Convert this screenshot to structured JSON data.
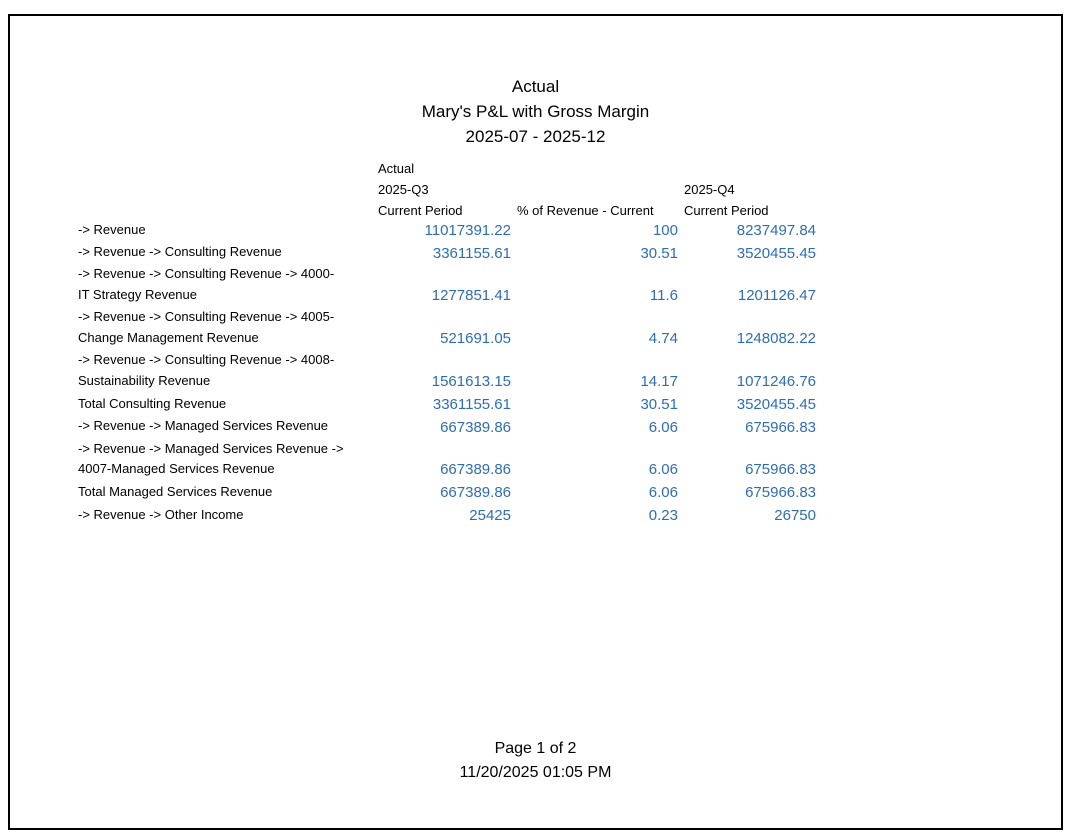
{
  "report": {
    "scenario": "Actual",
    "name": "Mary's P&L with Gross Margin",
    "period_range": "2025-07 - 2025-12"
  },
  "columns": {
    "group_label": "Actual",
    "q3_label": "2025-Q3",
    "q3_current": "Current Period",
    "pct_label": "% of Revenue - Current",
    "q4_label": "2025-Q4",
    "q4_current": "Current Period"
  },
  "rows": [
    {
      "label1": " -> Revenue",
      "label2": "",
      "q3": "11017391.22",
      "pct": "100",
      "q4": "8237497.84"
    },
    {
      "label1": " -> Revenue -> Consulting Revenue",
      "label2": "",
      "q3": "3361155.61",
      "pct": "30.51",
      "q4": "3520455.45"
    },
    {
      "label1": " -> Revenue -> Consulting Revenue -> 4000-",
      "label2": "IT Strategy Revenue",
      "q3": "1277851.41",
      "pct": "11.6",
      "q4": "1201126.47"
    },
    {
      "label1": " -> Revenue -> Consulting Revenue -> 4005-",
      "label2": "Change Management Revenue",
      "q3": "521691.05",
      "pct": "4.74",
      "q4": "1248082.22"
    },
    {
      "label1": " -> Revenue -> Consulting Revenue -> 4008-",
      "label2": "Sustainability Revenue",
      "q3": "1561613.15",
      "pct": "14.17",
      "q4": "1071246.76"
    },
    {
      "label1": "Total Consulting Revenue",
      "label2": "",
      "q3": "3361155.61",
      "pct": "30.51",
      "q4": "3520455.45"
    },
    {
      "label1": " -> Revenue -> Managed Services Revenue",
      "label2": "",
      "q3": "667389.86",
      "pct": "6.06",
      "q4": "675966.83"
    },
    {
      "label1": " -> Revenue -> Managed Services Revenue ->",
      "label2": "4007-Managed Services Revenue",
      "q3": "667389.86",
      "pct": "6.06",
      "q4": "675966.83"
    },
    {
      "label1": "Total Managed Services Revenue",
      "label2": "",
      "q3": "667389.86",
      "pct": "6.06",
      "q4": "675966.83"
    },
    {
      "label1": " -> Revenue -> Other Income",
      "label2": "",
      "q3": "25425",
      "pct": "0.23",
      "q4": "26750"
    }
  ],
  "footer": {
    "page": "Page 1 of 2",
    "timestamp": "11/20/2025 01:05 PM"
  },
  "colors": {
    "value_text": "#2e6db5",
    "frame": "#000000"
  }
}
